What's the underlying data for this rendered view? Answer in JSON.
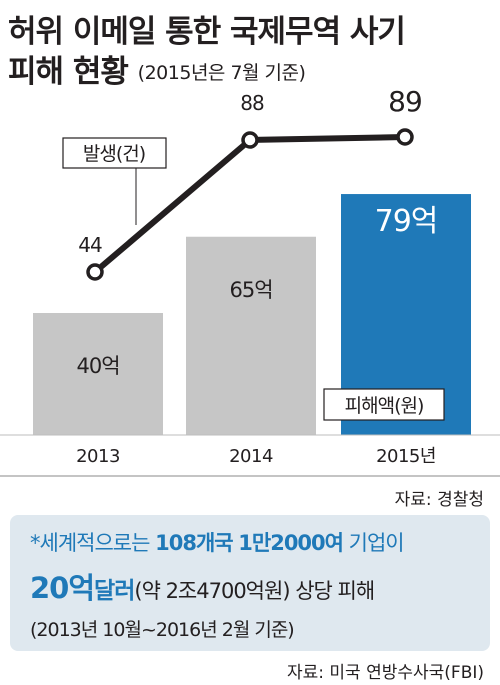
{
  "header": {
    "title_line1": "허위 이메일 통한 국제무역 사기",
    "title_line2": "피해 현황",
    "title_note": "(2015년은 7월 기준)"
  },
  "chart_data": {
    "type": "bar+line",
    "categories": [
      "2013",
      "2014",
      "2015년"
    ],
    "bars": {
      "name": "피해액(원)",
      "values": [
        40,
        65,
        79
      ],
      "labels": [
        "40억",
        "65억",
        "79억"
      ],
      "colors": [
        "#c6c6c6",
        "#c6c6c6",
        "#1f79b8"
      ]
    },
    "line": {
      "name": "발생(건)",
      "values": [
        44,
        88,
        89
      ],
      "labels": [
        "44",
        "88",
        "89"
      ]
    }
  },
  "source1": "자료: 경찰청",
  "note": {
    "line1_prefix": "*세계적으로는 ",
    "line1_countries": "108개국",
    "line1_companies": "1만2000여",
    "line1_suffix": " 기업이",
    "line2_amount": "20억",
    "line2_unit": "달러",
    "line2_rest": "(약 2조4700억원) 상당 피해",
    "line3": "(2013년 10월~2016년 2월 기준)"
  },
  "source2": "자료: 미국 연방수사국(FBI)"
}
